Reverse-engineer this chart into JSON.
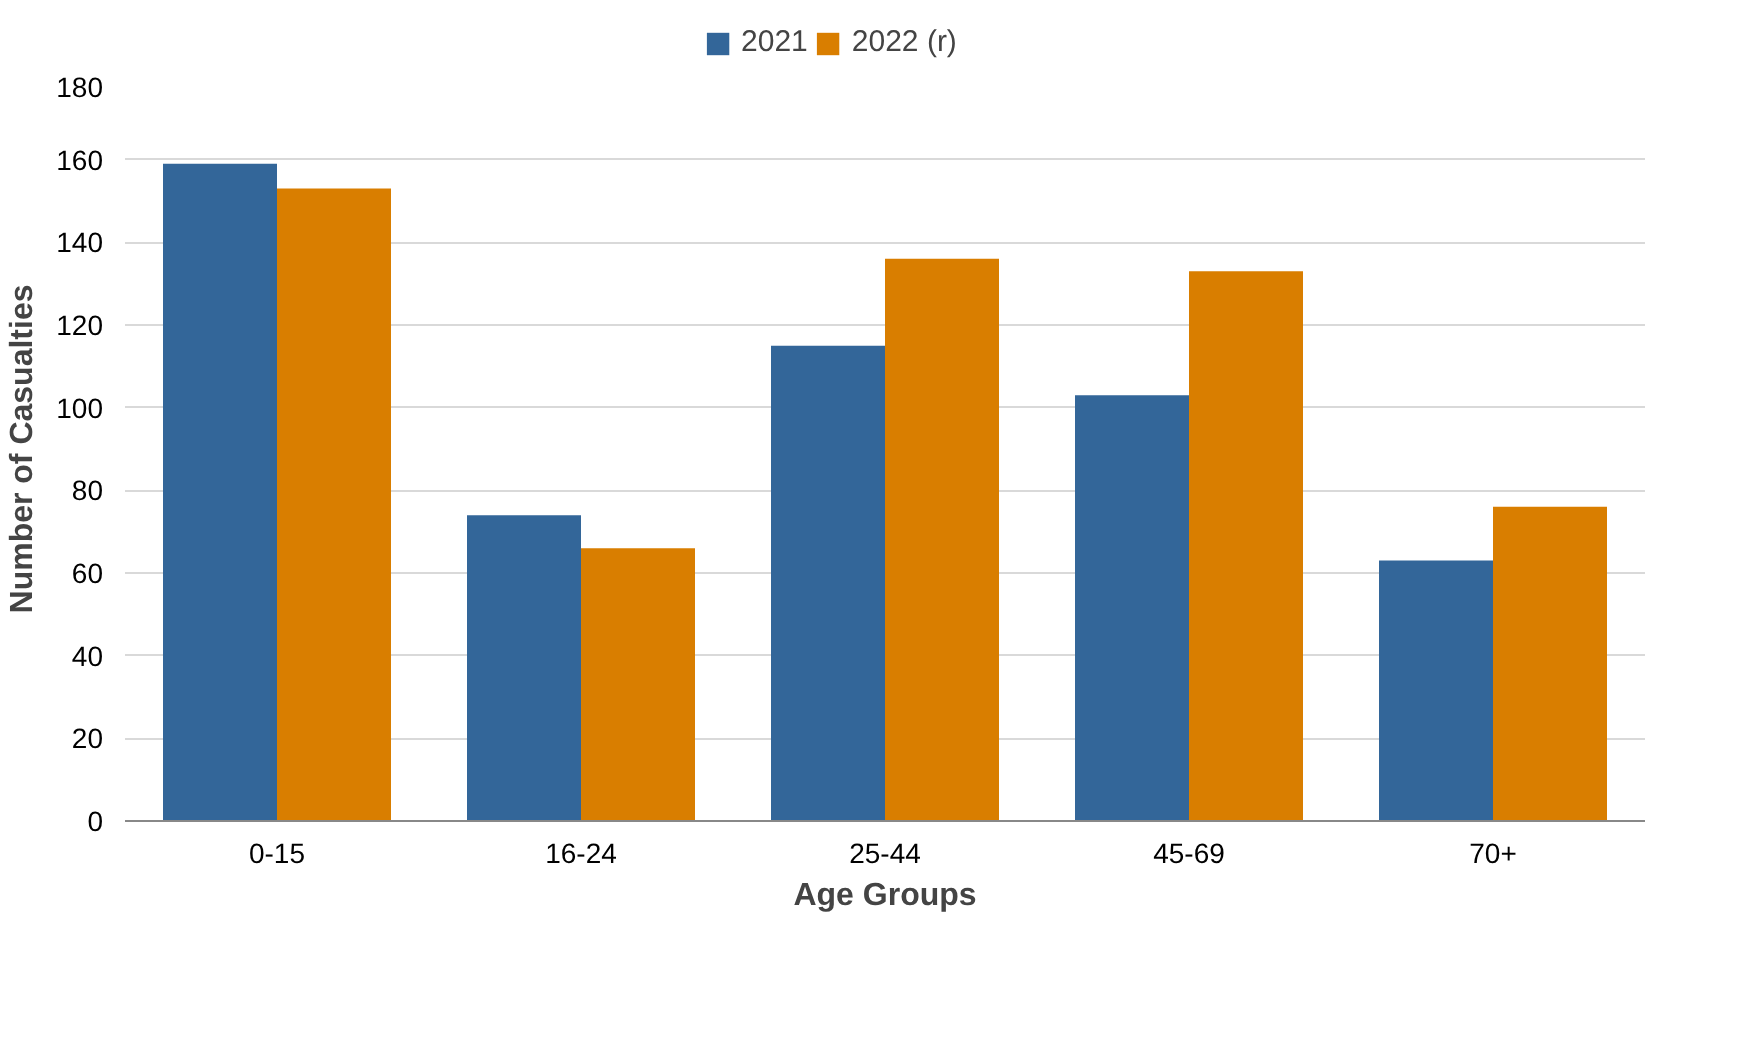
{
  "chart_data": {
    "type": "bar",
    "xlabel": "Age Groups",
    "ylabel": "Number of Casualties",
    "categories": [
      "0-15",
      "16-24",
      "25-44",
      "45-69",
      "70+"
    ],
    "series": [
      {
        "name": "2021",
        "color": "#336699",
        "values": [
          159,
          74,
          115,
          103,
          63
        ]
      },
      {
        "name": "2022 (r)",
        "color": "#d97e00",
        "values": [
          153,
          66,
          136,
          133,
          76
        ]
      }
    ],
    "ylim": [
      0,
      180
    ],
    "yticks": [
      0,
      20,
      40,
      60,
      80,
      100,
      120,
      140,
      160,
      180
    ],
    "grid": "y",
    "legend": "top"
  }
}
